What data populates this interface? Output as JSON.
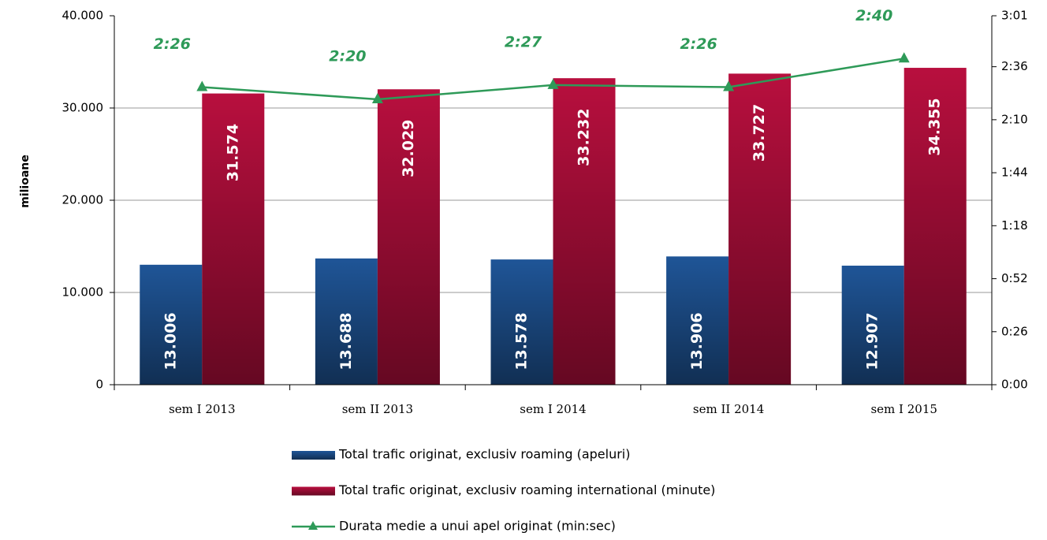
{
  "chart_data": {
    "type": "bar",
    "y_label": "milioane",
    "categories": [
      "sem I 2013",
      "sem II 2013",
      "sem I 2014",
      "sem II 2014",
      "sem I 2015"
    ],
    "series": [
      {
        "name": "Total trafic originat, exclusiv roaming (apeluri)",
        "color": "#1f5597",
        "type": "bar",
        "values": [
          13006,
          13688,
          13578,
          13906,
          12907
        ],
        "value_labels": [
          "13.006",
          "13.688",
          "13.578",
          "13.906",
          "12.907"
        ]
      },
      {
        "name": "Total trafic originat, exclusiv roaming international (minute)",
        "color": "#b80f3e",
        "type": "bar",
        "values": [
          31574,
          32029,
          33232,
          33727,
          34355
        ],
        "value_labels": [
          "31.574",
          "32.029",
          "33.232",
          "33.727",
          "34.355"
        ]
      },
      {
        "name": "Durata medie a unui apel originat (min:sec)",
        "color": "#2e9a58",
        "type": "line",
        "axis": "y2",
        "values": [
          146,
          140,
          147,
          146,
          160
        ],
        "value_labels": [
          "2:26",
          "2:20",
          "2:27",
          "2:26",
          "2:40"
        ]
      }
    ],
    "ylim": [
      0,
      40000
    ],
    "yticks": [
      0,
      {
        "value": 10000,
        "label": "10.000"
      },
      {
        "value": 20000,
        "label": "20.000"
      },
      {
        "value": 30000,
        "label": "30.000"
      },
      {
        "value": 40000,
        "label": "40.000"
      }
    ],
    "y2lim": [
      0,
      181
    ],
    "y2ticks": [
      {
        "value": 0,
        "label": "0:00"
      },
      {
        "value": 26,
        "label": "0:26"
      },
      {
        "value": 52,
        "label": "0:52"
      },
      {
        "value": 78,
        "label": "1:18"
      },
      {
        "value": 104,
        "label": "1:44"
      },
      {
        "value": 130,
        "label": "2:10"
      },
      {
        "value": 156,
        "label": "2:36"
      },
      {
        "value": 181,
        "label": "3:01"
      }
    ],
    "grid": true,
    "legend": "bottom"
  }
}
